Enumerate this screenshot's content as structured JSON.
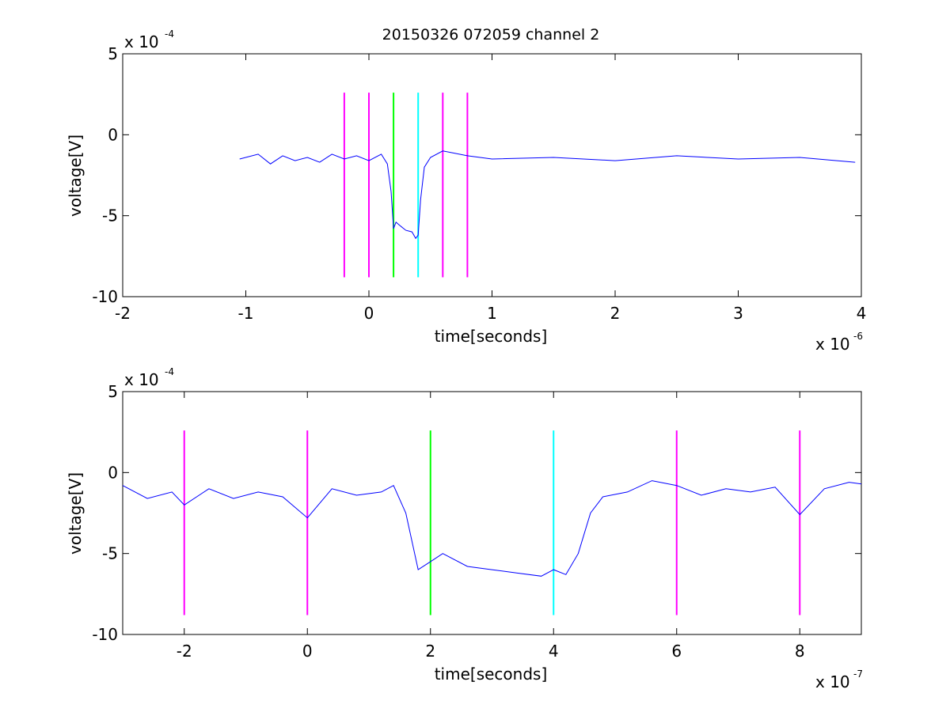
{
  "figure": {
    "title": "20150326 072059 channel 2"
  },
  "chart_data": [
    {
      "type": "line",
      "xlabel": "time[seconds]",
      "ylabel": "voltage[V]",
      "x_exponent_label": "x 10",
      "x_exponent": "-6",
      "y_exponent_label": "x 10",
      "y_exponent": "-4",
      "xlim": [
        -2,
        4
      ],
      "ylim": [
        -10,
        5
      ],
      "xticks": [
        "-2",
        "-1",
        "0",
        "1",
        "2",
        "3",
        "4"
      ],
      "yticks": [
        "5",
        "0",
        "-5",
        "-10"
      ],
      "series": [
        {
          "color": "#0000ff",
          "x": [
            -1.05,
            -0.9,
            -0.8,
            -0.7,
            -0.6,
            -0.5,
            -0.4,
            -0.3,
            -0.2,
            -0.1,
            0.0,
            0.1,
            0.15,
            0.18,
            0.2,
            0.22,
            0.25,
            0.3,
            0.35,
            0.38,
            0.4,
            0.42,
            0.45,
            0.5,
            0.6,
            0.8,
            1.0,
            1.5,
            2.0,
            2.5,
            3.0,
            3.5,
            3.95
          ],
          "y": [
            -1.5,
            -1.2,
            -1.8,
            -1.3,
            -1.6,
            -1.4,
            -1.7,
            -1.2,
            -1.5,
            -1.3,
            -1.6,
            -1.2,
            -1.8,
            -3.5,
            -5.8,
            -5.4,
            -5.6,
            -5.9,
            -6.0,
            -6.4,
            -6.2,
            -4.0,
            -2.0,
            -1.4,
            -1.0,
            -1.3,
            -1.5,
            -1.4,
            -1.6,
            -1.3,
            -1.5,
            -1.4,
            -1.7
          ]
        }
      ],
      "vlines": [
        {
          "x": -0.2,
          "color": "#ff00ff"
        },
        {
          "x": 0.0,
          "color": "#ff00ff"
        },
        {
          "x": 0.2,
          "color": "#00ff00"
        },
        {
          "x": 0.4,
          "color": "#00ffff"
        },
        {
          "x": 0.6,
          "color": "#ff00ff"
        },
        {
          "x": 0.8,
          "color": "#ff00ff"
        }
      ],
      "vline_range": [
        -8.8,
        2.6
      ],
      "grid": false
    },
    {
      "type": "line",
      "xlabel": "time[seconds]",
      "ylabel": "voltage[V]",
      "x_exponent_label": "x 10",
      "x_exponent": "-7",
      "y_exponent_label": "x 10",
      "y_exponent": "-4",
      "xlim": [
        -3,
        9
      ],
      "ylim": [
        -10,
        5
      ],
      "xticks": [
        "-2",
        "0",
        "2",
        "4",
        "6",
        "8"
      ],
      "yticks": [
        "5",
        "0",
        "-5",
        "-10"
      ],
      "series": [
        {
          "color": "#0000ff",
          "x": [
            -3.0,
            -2.6,
            -2.2,
            -2.0,
            -1.6,
            -1.2,
            -0.8,
            -0.4,
            0.0,
            0.4,
            0.8,
            1.2,
            1.4,
            1.6,
            1.8,
            2.0,
            2.2,
            2.6,
            3.0,
            3.4,
            3.8,
            4.0,
            4.2,
            4.4,
            4.6,
            4.8,
            5.2,
            5.6,
            6.0,
            6.4,
            6.8,
            7.2,
            7.6,
            8.0,
            8.4,
            8.8,
            9.0
          ],
          "y": [
            -0.8,
            -1.6,
            -1.2,
            -2.0,
            -1.0,
            -1.6,
            -1.2,
            -1.5,
            -2.8,
            -1.0,
            -1.4,
            -1.2,
            -0.8,
            -2.5,
            -6.0,
            -5.5,
            -5.0,
            -5.8,
            -6.0,
            -6.2,
            -6.4,
            -6.0,
            -6.3,
            -5.0,
            -2.5,
            -1.5,
            -1.2,
            -0.5,
            -0.8,
            -1.4,
            -1.0,
            -1.2,
            -0.9,
            -2.6,
            -1.0,
            -0.6,
            -0.7
          ]
        }
      ],
      "vlines": [
        {
          "x": -2,
          "color": "#ff00ff"
        },
        {
          "x": 0,
          "color": "#ff00ff"
        },
        {
          "x": 2,
          "color": "#00ff00"
        },
        {
          "x": 4,
          "color": "#00ffff"
        },
        {
          "x": 6,
          "color": "#ff00ff"
        },
        {
          "x": 8,
          "color": "#ff00ff"
        }
      ],
      "vline_range": [
        -8.8,
        2.6
      ],
      "grid": false
    }
  ]
}
